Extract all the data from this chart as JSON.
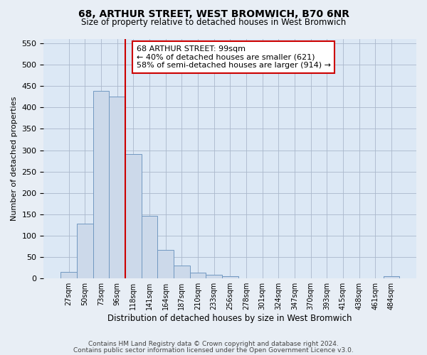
{
  "title": "68, ARTHUR STREET, WEST BROMWICH, B70 6NR",
  "subtitle": "Size of property relative to detached houses in West Bromwich",
  "xlabel": "Distribution of detached houses by size in West Bromwich",
  "ylabel": "Number of detached properties",
  "bin_labels": [
    "27sqm",
    "50sqm",
    "73sqm",
    "96sqm",
    "118sqm",
    "141sqm",
    "164sqm",
    "187sqm",
    "210sqm",
    "233sqm",
    "256sqm",
    "278sqm",
    "301sqm",
    "324sqm",
    "347sqm",
    "370sqm",
    "393sqm",
    "415sqm",
    "438sqm",
    "461sqm",
    "484sqm"
  ],
  "bar_values": [
    15,
    128,
    438,
    425,
    291,
    147,
    67,
    30,
    14,
    8,
    5,
    1,
    0,
    0,
    0,
    0,
    0,
    0,
    0,
    0,
    5
  ],
  "bar_color": "#ccd9ea",
  "bar_edge_color": "#7198c1",
  "vline_x": 3.5,
  "vline_color": "#cc0000",
  "annotation_text": "68 ARTHUR STREET: 99sqm\n← 40% of detached houses are smaller (621)\n58% of semi-detached houses are larger (914) →",
  "annotation_box_color": "#ffffff",
  "annotation_box_edge_color": "#cc0000",
  "ylim": [
    0,
    560
  ],
  "yticks": [
    0,
    50,
    100,
    150,
    200,
    250,
    300,
    350,
    400,
    450,
    500,
    550
  ],
  "footer_line1": "Contains HM Land Registry data © Crown copyright and database right 2024.",
  "footer_line2": "Contains public sector information licensed under the Open Government Licence v3.0.",
  "bg_color": "#e8eef5",
  "plot_bg_color": "#dce8f5"
}
